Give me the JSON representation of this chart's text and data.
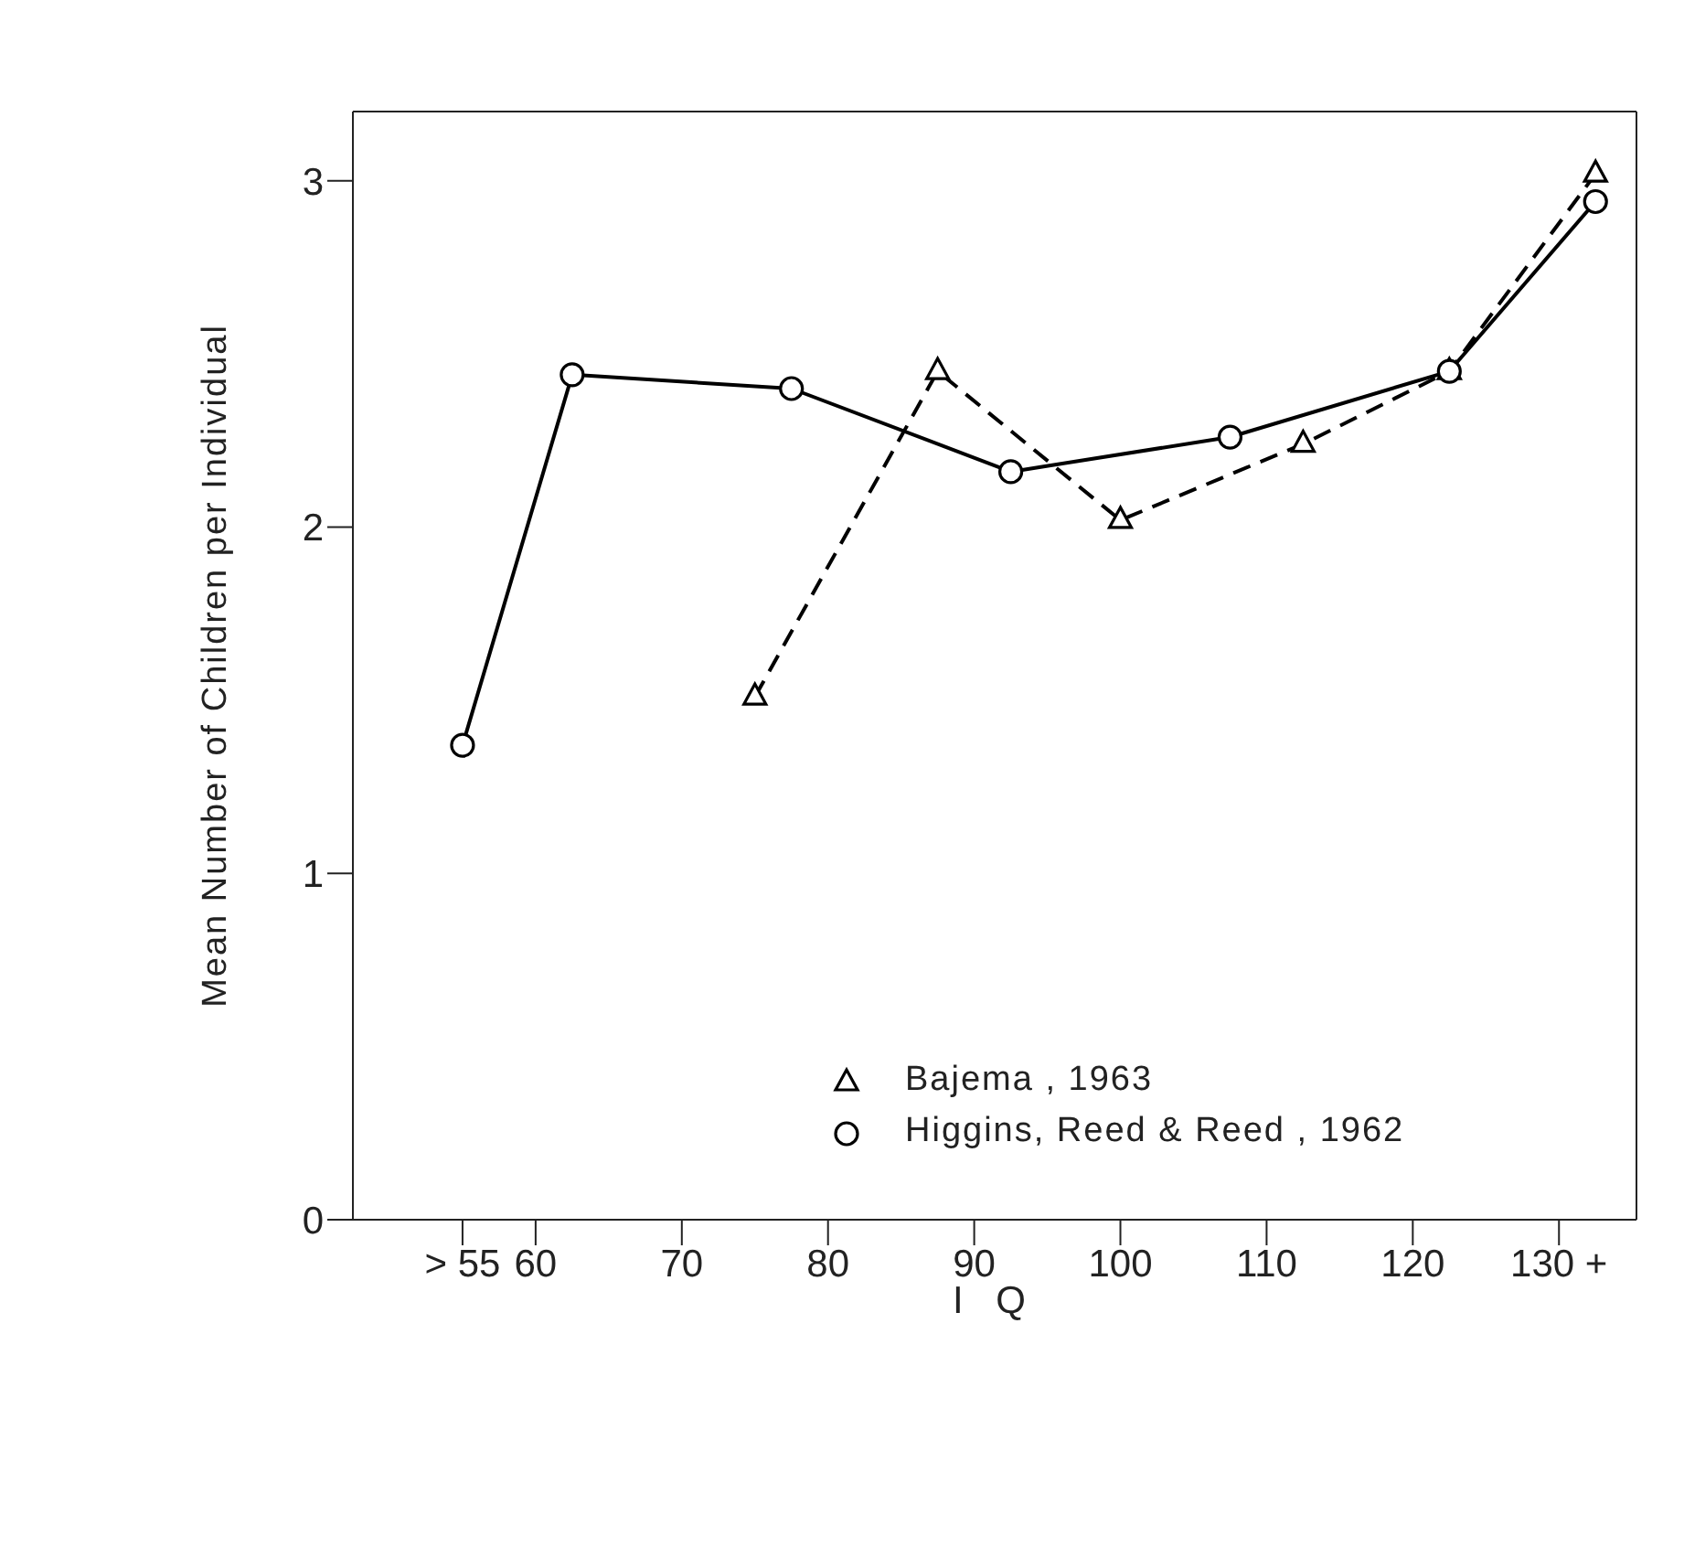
{
  "chart_data": {
    "type": "line",
    "xlabel": "I Q",
    "ylabel": "Mean Number of Children per Individual",
    "xlim": [
      47.5,
      135.3
    ],
    "ylim": [
      0,
      3.2
    ],
    "xticks": [
      {
        "value": 55,
        "label": "> 55"
      },
      60,
      70,
      80,
      90,
      100,
      110,
      120,
      {
        "value": 130,
        "label": "130 +"
      }
    ],
    "yticks": [
      0,
      1,
      2,
      3
    ],
    "legend": "bottom right",
    "series": [
      {
        "name": "Bajema , 1963",
        "color": "#000000",
        "marker": "triangle",
        "line_style": "dashed",
        "x": [
          75,
          87.5,
          100,
          112.5,
          122.5,
          132.5
        ],
        "values": [
          1.51,
          2.45,
          2.02,
          2.24,
          2.45,
          3.02
        ]
      },
      {
        "name": "Higgins, Reed & Reed , 1962",
        "color": "#000000",
        "marker": "circle",
        "line_style": "solid",
        "x": [
          55,
          62.5,
          77.5,
          92.5,
          107.5,
          122.5,
          132.5
        ],
        "values": [
          1.37,
          2.44,
          2.4,
          2.16,
          2.26,
          2.45,
          2.94
        ]
      }
    ]
  }
}
